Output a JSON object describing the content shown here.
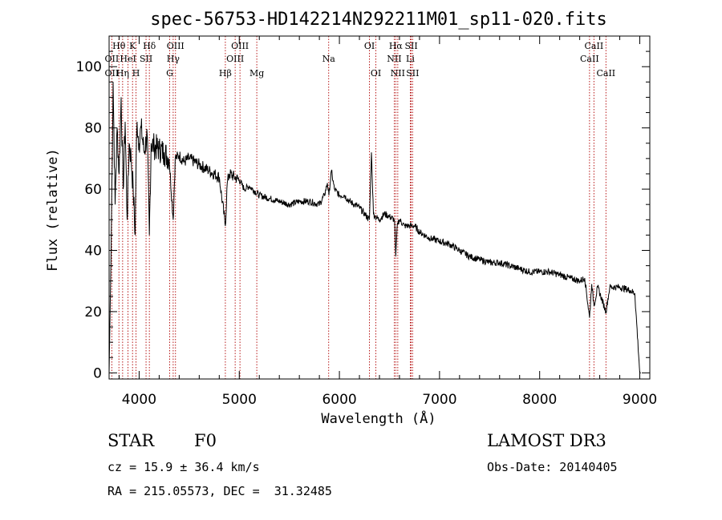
{
  "chart_data": {
    "type": "line",
    "title": "spec-56753-HD142214N292211M01_sp11-020.fits",
    "xlabel": "Wavelength (Å)",
    "ylabel": "Flux (relative)",
    "xlim": [
      3700,
      9100
    ],
    "ylim": [
      -2,
      110
    ],
    "xticks": [
      4000,
      5000,
      6000,
      7000,
      8000,
      9000
    ],
    "yticks": [
      0,
      20,
      40,
      60,
      80,
      100
    ],
    "series": [
      {
        "name": "flux",
        "x": [
          3700,
          3720,
          3740,
          3760,
          3780,
          3800,
          3820,
          3840,
          3860,
          3880,
          3900,
          3920,
          3940,
          3960,
          3970,
          3980,
          4000,
          4020,
          4050,
          4080,
          4102,
          4120,
          4150,
          4200,
          4250,
          4300,
          4340,
          4360,
          4400,
          4450,
          4500,
          4600,
          4700,
          4800,
          4861,
          4880,
          4900,
          4950,
          5000,
          5050,
          5100,
          5200,
          5300,
          5400,
          5500,
          5600,
          5700,
          5800,
          5850,
          5880,
          5895,
          5920,
          5950,
          6000,
          6050,
          6100,
          6150,
          6200,
          6250,
          6300,
          6320,
          6340,
          6360,
          6400,
          6450,
          6500,
          6550,
          6563,
          6580,
          6600,
          6650,
          6700,
          6750,
          6800,
          6900,
          7000,
          7100,
          7200,
          7300,
          7400,
          7500,
          7600,
          7700,
          7800,
          7900,
          8000,
          8100,
          8200,
          8300,
          8400,
          8450,
          8498,
          8520,
          8542,
          8580,
          8662,
          8700,
          8800,
          8900,
          8950,
          9000,
          9010
        ],
        "values": [
          0,
          40,
          95,
          55,
          80,
          65,
          90,
          60,
          82,
          50,
          75,
          70,
          60,
          45,
          70,
          82,
          75,
          80,
          72,
          78,
          45,
          75,
          74,
          73,
          72,
          70,
          50,
          70,
          71,
          69,
          70,
          68,
          66,
          64,
          48,
          62,
          65,
          64,
          63,
          60,
          61,
          58,
          57,
          56,
          55,
          56,
          56,
          55,
          58,
          62,
          58,
          66,
          60,
          58,
          58,
          56,
          55,
          54,
          52,
          50,
          72,
          52,
          51,
          50,
          52,
          51,
          50,
          38,
          49,
          50,
          48,
          48,
          48,
          46,
          44,
          43,
          42,
          40,
          38,
          37,
          36,
          36,
          35,
          34,
          33,
          33,
          33,
          32,
          31,
          30,
          31,
          18,
          29,
          22,
          28,
          20,
          28,
          28,
          27,
          26,
          0,
          0
        ]
      }
    ],
    "lines": [
      {
        "name": "Hθ",
        "x": 3798,
        "row": 1
      },
      {
        "name": "OII",
        "x": 3727,
        "row": 2
      },
      {
        "name": "OII",
        "x": 3727,
        "row": 3
      },
      {
        "name": "Hη",
        "x": 3835,
        "row": 3
      },
      {
        "name": "K",
        "x": 3934,
        "row": 1
      },
      {
        "name": "HeI",
        "x": 3889,
        "row": 2
      },
      {
        "name": "H",
        "x": 3969,
        "row": 3
      },
      {
        "name": "SII",
        "x": 4069,
        "row": 2
      },
      {
        "name": "Hδ",
        "x": 4102,
        "row": 1
      },
      {
        "name": "OIII",
        "x": 4363,
        "row": 1
      },
      {
        "name": "Hγ",
        "x": 4340,
        "row": 2
      },
      {
        "name": "G",
        "x": 4305,
        "row": 3
      },
      {
        "name": "Hβ",
        "x": 4861,
        "row": 3
      },
      {
        "name": "OIII",
        "x": 5007,
        "row": 1
      },
      {
        "name": "OIII",
        "x": 4959,
        "row": 2
      },
      {
        "name": "Mg",
        "x": 5175,
        "row": 3
      },
      {
        "name": "Na",
        "x": 5893,
        "row": 2
      },
      {
        "name": "OI",
        "x": 6300,
        "row": 1
      },
      {
        "name": "OI",
        "x": 6364,
        "row": 3
      },
      {
        "name": "Hα",
        "x": 6563,
        "row": 1
      },
      {
        "name": "NII",
        "x": 6548,
        "row": 2
      },
      {
        "name": "NII",
        "x": 6583,
        "row": 3
      },
      {
        "name": "SII",
        "x": 6717,
        "row": 1
      },
      {
        "name": "Li",
        "x": 6708,
        "row": 2
      },
      {
        "name": "SII",
        "x": 6731,
        "row": 3
      },
      {
        "name": "CaII",
        "x": 8542,
        "row": 1
      },
      {
        "name": "CaII",
        "x": 8498,
        "row": 2
      },
      {
        "name": "CaII",
        "x": 8662,
        "row": 3
      }
    ]
  },
  "info": {
    "class": "STAR",
    "subclass": "F0",
    "survey": "LAMOST DR3",
    "cz": "cz = 15.9 ± 36.4 km/s",
    "obs_date": "Obs-Date: 20140405",
    "coords": "RA = 215.05573, DEC =  31.32485"
  },
  "colors": {
    "flux": "#000000",
    "line_marker": "#b00000",
    "axes": "#000000"
  }
}
